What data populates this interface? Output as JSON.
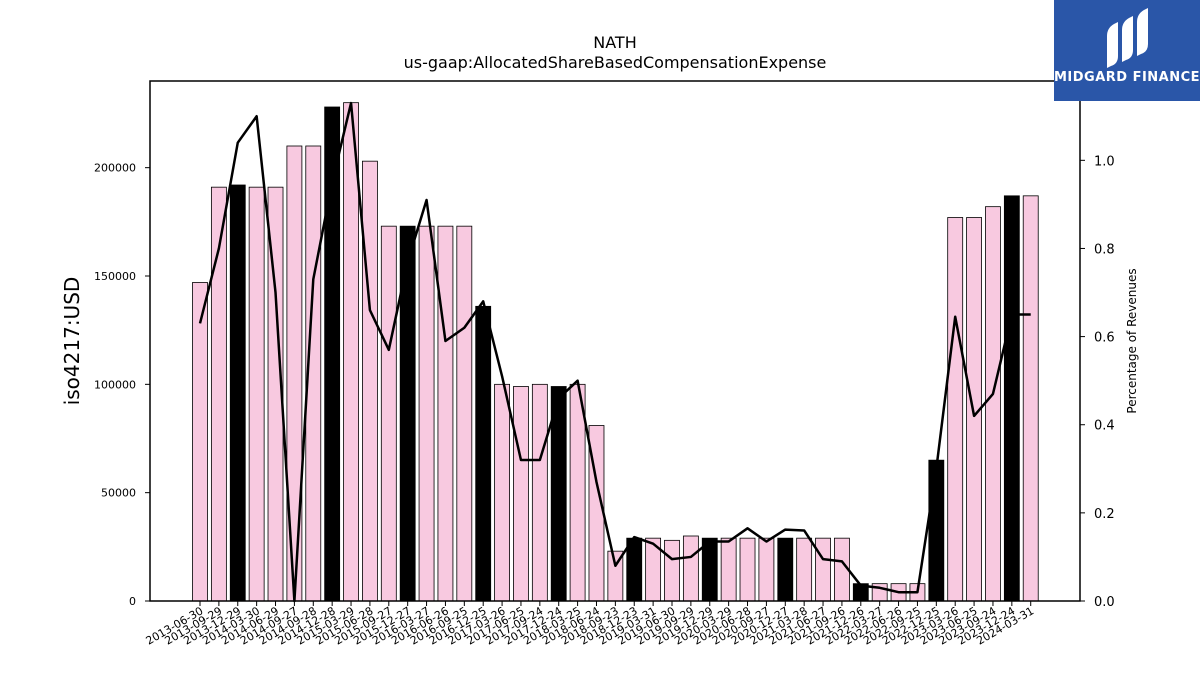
{
  "brand": {
    "name": "MIDGARD FINANCE",
    "color": "#2a56a8"
  },
  "chart_data": {
    "type": "bar",
    "title": "NATH",
    "subtitle": "us-gaap:AllocatedShareBasedCompensationExpense",
    "ylabel": "iso4217:USD",
    "y2label": "Percentage of Revenues",
    "ylim": [
      0,
      240000
    ],
    "y2lim": [
      0,
      1.18
    ],
    "yticks": [
      0,
      50000,
      100000,
      150000,
      200000
    ],
    "y2ticks": [
      "0.0",
      "0.2",
      "0.4",
      "0.6",
      "0.8",
      "1.0"
    ],
    "bar_color": "#f8c9e0",
    "highlight_color": "#000000",
    "line_color": "#000000",
    "categories": [
      "2013-06-30",
      "2013-09-29",
      "2013-12-29",
      "2014-03-30",
      "2014-06-29",
      "2014-09-27",
      "2014-09-28",
      "2014-12-28",
      "2015-03-29",
      "2015-06-28",
      "2015-09-27",
      "2015-12-27",
      "2016-03-27",
      "2016-06-26",
      "2016-09-25",
      "2016-12-25",
      "2017-03-26",
      "2017-06-25",
      "2017-09-24",
      "2017-12-24",
      "2018-03-25",
      "2018-06-24",
      "2018-09-23",
      "2018-12-23",
      "2019-03-31",
      "2019-06-30",
      "2019-09-29",
      "2019-12-29",
      "2020-03-29",
      "2020-06-28",
      "2020-09-27",
      "2020-12-27",
      "2021-03-28",
      "2021-06-27",
      "2021-09-26",
      "2021-12-26",
      "2022-03-27",
      "2022-06-26",
      "2022-09-25",
      "2022-12-25",
      "2023-03-26",
      "2023-06-25",
      "2023-09-24",
      "2023-12-24",
      "2024-03-31"
    ],
    "series": [
      {
        "type": "bar",
        "values": [
          147000,
          191000,
          192000,
          191000,
          191000,
          210000,
          210000,
          228000,
          230000,
          203000,
          173000,
          173000,
          173000,
          173000,
          173000,
          136000,
          100000,
          99000,
          100000,
          99000,
          100000,
          81000,
          23000,
          29000,
          29000,
          28000,
          30000,
          29000,
          29000,
          29000,
          29000,
          29000,
          29000,
          29000,
          29000,
          8000,
          8000,
          8000,
          8000,
          65000,
          177000,
          177000,
          182000,
          187000,
          187000
        ],
        "highlight": [
          false,
          false,
          true,
          false,
          false,
          false,
          false,
          true,
          false,
          false,
          false,
          true,
          false,
          false,
          false,
          true,
          false,
          false,
          false,
          true,
          false,
          false,
          false,
          true,
          false,
          false,
          false,
          true,
          false,
          false,
          false,
          true,
          false,
          false,
          false,
          true,
          false,
          false,
          false,
          true,
          false,
          false,
          false,
          true,
          false
        ]
      },
      {
        "type": "line",
        "axis": "right",
        "values": [
          0.63,
          0.8,
          1.04,
          1.1,
          0.7,
          0.0,
          0.73,
          0.95,
          1.13,
          0.66,
          0.57,
          0.77,
          0.91,
          0.59,
          0.62,
          0.68,
          0.51,
          0.32,
          0.32,
          0.46,
          0.5,
          0.27,
          0.08,
          0.145,
          0.13,
          0.095,
          0.1,
          0.135,
          0.135,
          0.165,
          0.135,
          0.162,
          0.16,
          0.095,
          0.09,
          0.035,
          0.03,
          0.02,
          0.02,
          0.3,
          0.645,
          0.42,
          0.47,
          0.65,
          0.65
        ]
      }
    ]
  }
}
